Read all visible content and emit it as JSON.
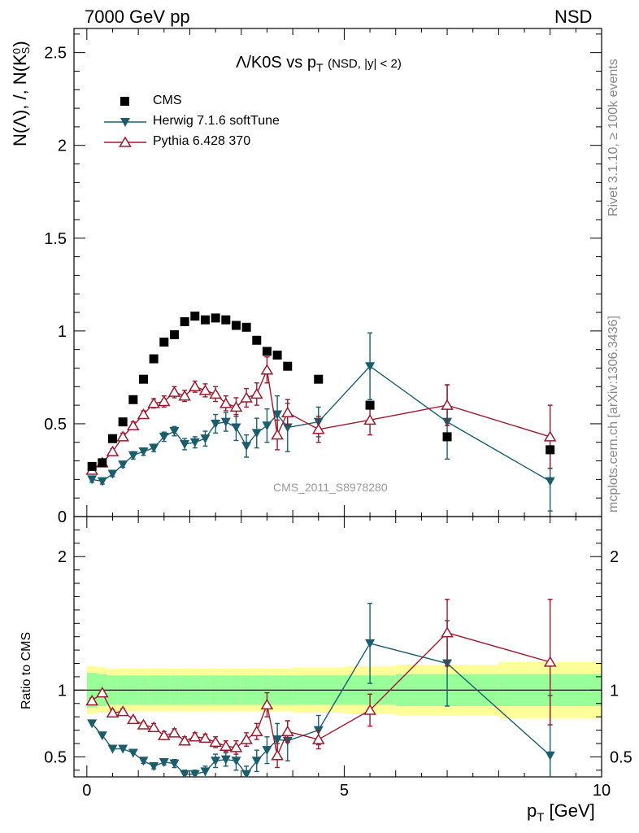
{
  "header": {
    "left": "7000 GeV pp",
    "right": "NSD"
  },
  "side_labels": {
    "rivet": "Rivet 3.1.10, ≥ 100k events",
    "mcplots": "mcplots.cern.ch [arXiv:1306.3436]"
  },
  "watermark": "CMS_2011_S8978280",
  "chart_data": [
    {
      "type": "line",
      "panel": "main",
      "title": "Λ/K0S vs p_T (NSD, |y| < 2)",
      "title_main": "Λ/K0S vs p",
      "title_sub": "T",
      "title_note": "(NSD, |y| < 2)",
      "ylabel": "N(Λ), /, N(K_S^0)",
      "ylabel_parts": {
        "a": "N(Λ), /, N(K",
        "sup": "0",
        "sub": "S",
        "close": ")"
      },
      "xlabel": "p_T [GeV]",
      "xlabel_parts": {
        "p": "p",
        "sub": "T",
        "unit": "[GeV]"
      },
      "xlim": [
        -0.25,
        10.0
      ],
      "ylim": [
        0,
        2.63
      ],
      "yticks": [
        0,
        0.5,
        1,
        1.5,
        2,
        2.5
      ],
      "ytick_labels": [
        "0",
        "0.5",
        "1",
        "1.5",
        "2",
        "2.5"
      ],
      "xticks": [
        0,
        5,
        10
      ],
      "xtick_labels": [
        "0",
        "5",
        "10"
      ],
      "legend": {
        "position": "top-left",
        "entries": [
          {
            "name": "CMS",
            "marker": "square",
            "color": "#000000"
          },
          {
            "name": "Herwig 7.1.6 softTune",
            "marker": "triangle-down",
            "color": "#1b5d6b"
          },
          {
            "name": "Pythia 6.428 370",
            "marker": "triangle-up-open",
            "color": "#9b1a2e"
          }
        ]
      },
      "series": [
        {
          "name": "CMS",
          "color": "#000000",
          "marker": "square",
          "line": false,
          "x": [
            0.1,
            0.3,
            0.5,
            0.7,
            0.9,
            1.1,
            1.3,
            1.5,
            1.7,
            1.9,
            2.1,
            2.3,
            2.5,
            2.7,
            2.9,
            3.1,
            3.3,
            3.5,
            3.7,
            3.9,
            4.5,
            5.5,
            7.0,
            9.0
          ],
          "y": [
            0.27,
            0.29,
            0.42,
            0.51,
            0.63,
            0.74,
            0.85,
            0.94,
            0.98,
            1.05,
            1.08,
            1.06,
            1.07,
            1.06,
            1.03,
            1.02,
            0.95,
            0.89,
            0.87,
            0.81,
            0.74,
            0.6,
            0.43,
            0.36
          ],
          "err": [
            0.005,
            0.005,
            0.005,
            0.005,
            0.005,
            0.005,
            0.005,
            0.005,
            0.005,
            0.005,
            0.005,
            0.005,
            0.005,
            0.005,
            0.005,
            0.005,
            0.005,
            0.005,
            0.005,
            0.005,
            0.01,
            0.015,
            0.02,
            0.02
          ]
        },
        {
          "name": "Herwig 7.1.6 softTune",
          "color": "#1b5d6b",
          "marker": "triangle-down",
          "line": true,
          "x": [
            0.1,
            0.3,
            0.5,
            0.7,
            0.9,
            1.1,
            1.3,
            1.5,
            1.7,
            1.9,
            2.1,
            2.3,
            2.5,
            2.7,
            2.9,
            3.1,
            3.3,
            3.5,
            3.7,
            3.9,
            4.5,
            5.5,
            7.0,
            9.0
          ],
          "y": [
            0.2,
            0.19,
            0.23,
            0.28,
            0.33,
            0.35,
            0.37,
            0.43,
            0.46,
            0.39,
            0.4,
            0.42,
            0.5,
            0.51,
            0.48,
            0.38,
            0.45,
            0.49,
            0.55,
            0.48,
            0.51,
            0.81,
            0.51,
            0.19
          ],
          "err": [
            0.015,
            0.015,
            0.015,
            0.015,
            0.02,
            0.02,
            0.02,
            0.025,
            0.025,
            0.03,
            0.03,
            0.04,
            0.05,
            0.05,
            0.07,
            0.06,
            0.08,
            0.09,
            0.1,
            0.13,
            0.08,
            0.18,
            0.2,
            0.16
          ]
        },
        {
          "name": "Pythia 6.428 370",
          "color": "#9b1a2e",
          "marker": "triangle-up-open",
          "line": true,
          "x": [
            0.1,
            0.3,
            0.5,
            0.7,
            0.9,
            1.1,
            1.3,
            1.5,
            1.7,
            1.9,
            2.1,
            2.3,
            2.5,
            2.7,
            2.9,
            3.1,
            3.3,
            3.5,
            3.7,
            3.9,
            4.5,
            5.5,
            7.0,
            9.0
          ],
          "y": [
            0.25,
            0.29,
            0.35,
            0.43,
            0.49,
            0.55,
            0.61,
            0.62,
            0.67,
            0.65,
            0.7,
            0.68,
            0.66,
            0.61,
            0.59,
            0.64,
            0.66,
            0.79,
            0.44,
            0.56,
            0.47,
            0.52,
            0.6,
            0.43
          ],
          "err": [
            0.015,
            0.015,
            0.015,
            0.02,
            0.02,
            0.02,
            0.025,
            0.03,
            0.03,
            0.03,
            0.03,
            0.035,
            0.04,
            0.04,
            0.05,
            0.05,
            0.06,
            0.07,
            0.08,
            0.07,
            0.07,
            0.08,
            0.11,
            0.17
          ]
        }
      ]
    },
    {
      "type": "line",
      "panel": "ratio",
      "ylabel": "Ratio to CMS",
      "ylim": [
        0.35,
        2.3
      ],
      "yticks": [
        0.5,
        1,
        2
      ],
      "ytick_labels": [
        "0.5",
        "1",
        "2"
      ],
      "reference_line": 1,
      "uncertainty_bands": {
        "x_edges": [
          0.0,
          0.2,
          0.4,
          0.6,
          0.8,
          1.0,
          1.2,
          1.4,
          1.6,
          1.8,
          2.0,
          2.2,
          2.4,
          2.6,
          2.8,
          3.0,
          3.2,
          3.4,
          3.6,
          3.8,
          4.0,
          5.0,
          6.0,
          8.0,
          10.0
        ],
        "inner": [
          0.13,
          0.12,
          0.11,
          0.11,
          0.11,
          0.11,
          0.11,
          0.11,
          0.11,
          0.11,
          0.11,
          0.11,
          0.11,
          0.11,
          0.11,
          0.11,
          0.11,
          0.11,
          0.11,
          0.11,
          0.11,
          0.11,
          0.12,
          0.12
        ],
        "outer": [
          0.18,
          0.17,
          0.16,
          0.16,
          0.16,
          0.16,
          0.16,
          0.16,
          0.16,
          0.16,
          0.16,
          0.16,
          0.16,
          0.16,
          0.16,
          0.16,
          0.16,
          0.16,
          0.16,
          0.16,
          0.17,
          0.18,
          0.19,
          0.21
        ],
        "inner_color": "#99ff99",
        "outer_color": "#ffff99"
      },
      "series": [
        {
          "name": "Herwig 7.1.6 softTune",
          "color": "#1b5d6b",
          "marker": "triangle-down",
          "x": [
            0.1,
            0.3,
            0.5,
            0.7,
            0.9,
            1.1,
            1.3,
            1.5,
            1.7,
            1.9,
            2.1,
            2.3,
            2.5,
            2.7,
            2.9,
            3.1,
            3.3,
            3.5,
            3.7,
            3.9,
            4.5,
            5.5,
            7.0,
            9.0
          ],
          "y": [
            0.75,
            0.66,
            0.56,
            0.56,
            0.53,
            0.47,
            0.43,
            0.46,
            0.45,
            0.37,
            0.37,
            0.39,
            0.47,
            0.48,
            0.47,
            0.37,
            0.47,
            0.55,
            0.63,
            0.62,
            0.7,
            1.35,
            1.2,
            0.51
          ],
          "err": [
            0.01,
            0.01,
            0.01,
            0.01,
            0.01,
            0.02,
            0.02,
            0.02,
            0.03,
            0.03,
            0.03,
            0.04,
            0.05,
            0.05,
            0.07,
            0.06,
            0.08,
            0.1,
            0.12,
            0.15,
            0.11,
            0.3,
            0.32,
            0.45
          ]
        },
        {
          "name": "Pythia 6.428 370",
          "color": "#9b1a2e",
          "marker": "triangle-up-open",
          "x": [
            0.1,
            0.3,
            0.5,
            0.7,
            0.9,
            1.1,
            1.3,
            1.5,
            1.7,
            1.9,
            2.1,
            2.3,
            2.5,
            2.7,
            2.9,
            3.1,
            3.3,
            3.5,
            3.7,
            3.9,
            4.5,
            5.5,
            7.0,
            9.0
          ],
          "y": [
            0.92,
            0.98,
            0.83,
            0.84,
            0.78,
            0.74,
            0.72,
            0.66,
            0.68,
            0.62,
            0.65,
            0.64,
            0.61,
            0.58,
            0.57,
            0.63,
            0.69,
            0.89,
            0.51,
            0.69,
            0.63,
            0.85,
            1.43,
            1.21
          ],
          "err": [
            0.02,
            0.02,
            0.02,
            0.02,
            0.02,
            0.02,
            0.03,
            0.03,
            0.03,
            0.03,
            0.03,
            0.03,
            0.04,
            0.04,
            0.05,
            0.05,
            0.06,
            0.09,
            0.09,
            0.08,
            0.07,
            0.12,
            0.25,
            0.47
          ]
        }
      ]
    }
  ]
}
